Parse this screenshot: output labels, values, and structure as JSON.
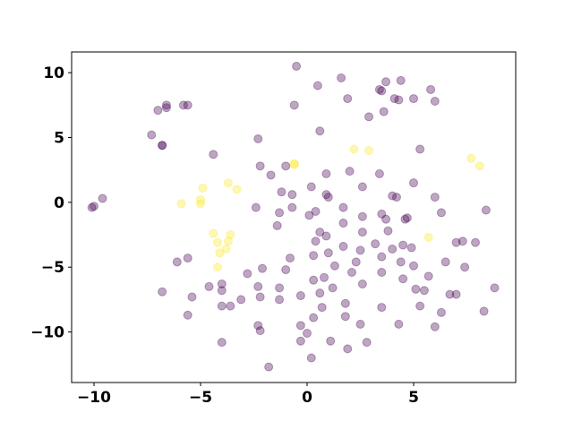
{
  "chart_data": {
    "type": "scatter",
    "xlim": [
      -11.05,
      9.79
    ],
    "ylim": [
      -13.9,
      11.6
    ],
    "xticks": [
      {
        "value": -10,
        "label": "−10"
      },
      {
        "value": -5,
        "label": "−5"
      },
      0,
      5
    ],
    "yticks": [
      {
        "value": -10,
        "label": "−10"
      },
      {
        "value": -5,
        "label": "−5"
      },
      0,
      5,
      10
    ],
    "grid": false,
    "series": [
      {
        "color": "#440154",
        "x": [
          -0.5,
          0.5,
          1.6,
          3.7,
          4.4,
          5.8,
          5.0,
          3.5,
          3.4,
          1.9,
          -0.6,
          2.9,
          3.6,
          4.1,
          4.3,
          6.0,
          -7.0,
          -6.6,
          -6.6,
          -5.8,
          -5.6,
          -7.3,
          -6.8,
          -6.8,
          0.6,
          -2.3,
          5.3,
          -4.4,
          -2.2,
          -1.0,
          -1.7,
          0.9,
          2.0,
          3.4,
          5.0,
          2.6,
          4.0,
          4.2,
          0.2,
          0.9,
          1.0,
          -1.2,
          -0.7,
          6.0,
          -2.4,
          -1.3,
          -0.7,
          0.1,
          0.4,
          1.7,
          2.6,
          3.5,
          4.6,
          4.7,
          6.3,
          8.4,
          -1.4,
          0.6,
          1.7,
          2.6,
          3.7,
          3.8,
          0.9,
          2.5,
          3.2,
          4.0,
          4.5,
          4.9,
          1.7,
          0.4,
          -0.8,
          0.3,
          1.0,
          2.3,
          3.5,
          4.4,
          7.0,
          7.3,
          7.9,
          -6.1,
          -5.6,
          -2.8,
          -2.1,
          -1.0,
          0.3,
          0.8,
          1.3,
          2.1,
          1.2,
          2.6,
          3.5,
          4.5,
          5.0,
          5.7,
          5.1,
          5.5,
          6.5,
          7.4,
          6.7,
          7.0,
          8.8,
          -4.6,
          -4.0,
          -4.0,
          -2.3,
          -1.3,
          -0.3,
          0.6,
          -2.2,
          -1.3,
          -3.1,
          -5.4,
          -6.8,
          -4.0,
          -3.6,
          0.7,
          1.8,
          3.5,
          5.3,
          6.3,
          8.3,
          -5.6,
          -2.3,
          -2.2,
          -0.3,
          0.3,
          1.8,
          2.5,
          0.0,
          -0.3,
          1.1,
          4.3,
          6.0,
          -4.0,
          -1.8,
          0.2,
          1.9,
          2.8,
          -10.0,
          -10.1,
          -9.6
        ],
        "y": [
          10.5,
          9.0,
          9.6,
          9.3,
          9.4,
          8.7,
          8.0,
          8.6,
          8.7,
          8.0,
          7.5,
          6.6,
          7.0,
          8.0,
          7.9,
          7.8,
          7.1,
          7.5,
          7.3,
          7.5,
          7.5,
          5.2,
          4.4,
          4.4,
          5.5,
          4.9,
          4.1,
          3.7,
          2.8,
          2.8,
          2.1,
          2.2,
          2.4,
          2.2,
          1.5,
          1.2,
          0.5,
          0.4,
          1.2,
          0.6,
          0.4,
          0.8,
          0.6,
          0.4,
          -0.4,
          -0.8,
          -0.4,
          -1.0,
          -0.7,
          -0.4,
          -1.1,
          -0.9,
          -1.3,
          -1.2,
          -0.8,
          -0.6,
          -1.8,
          -2.3,
          -1.6,
          -2.3,
          -1.3,
          -2.2,
          -2.6,
          -3.7,
          -3.2,
          -3.6,
          -3.3,
          -3.5,
          -3.4,
          -3.0,
          -4.3,
          -4.1,
          -3.9,
          -4.6,
          -4.2,
          -4.6,
          -3.1,
          -3.0,
          -3.1,
          -4.6,
          -4.3,
          -5.5,
          -5.1,
          -5.2,
          -6.0,
          -5.8,
          -4.9,
          -5.4,
          -6.6,
          -6.3,
          -5.4,
          -5.9,
          -4.9,
          -5.7,
          -6.7,
          -6.8,
          -4.6,
          -5.0,
          -7.1,
          -7.1,
          -6.6,
          -6.5,
          -6.3,
          -6.8,
          -6.5,
          -6.6,
          -7.2,
          -7.0,
          -7.3,
          -7.5,
          -7.5,
          -7.3,
          -6.9,
          -8.0,
          -8.0,
          -8.1,
          -7.8,
          -8.1,
          -8.0,
          -8.5,
          -8.4,
          -8.7,
          -9.5,
          -9.9,
          -9.5,
          -8.9,
          -8.8,
          -9.4,
          -10.1,
          -10.7,
          -10.7,
          -9.4,
          -9.6,
          -10.8,
          -12.7,
          -12.0,
          -11.3,
          -10.8,
          -0.3,
          -0.4,
          0.3
        ]
      },
      {
        "color": "#fde725",
        "x": [
          -0.6,
          -0.6,
          2.2,
          2.9,
          7.7,
          8.1,
          -3.7,
          -3.3,
          -4.9,
          -5.9,
          -5.0,
          -5.0,
          -4.4,
          -3.6,
          -4.2,
          -3.7,
          -3.8,
          -4.1,
          -4.2,
          5.7
        ],
        "y": [
          3.0,
          2.9,
          4.1,
          4.0,
          3.4,
          2.8,
          1.5,
          1.0,
          1.1,
          -0.1,
          -0.1,
          0.2,
          -2.4,
          -2.5,
          -3.1,
          -3.0,
          -3.6,
          -3.9,
          -5.0,
          -2.7
        ]
      }
    ]
  }
}
